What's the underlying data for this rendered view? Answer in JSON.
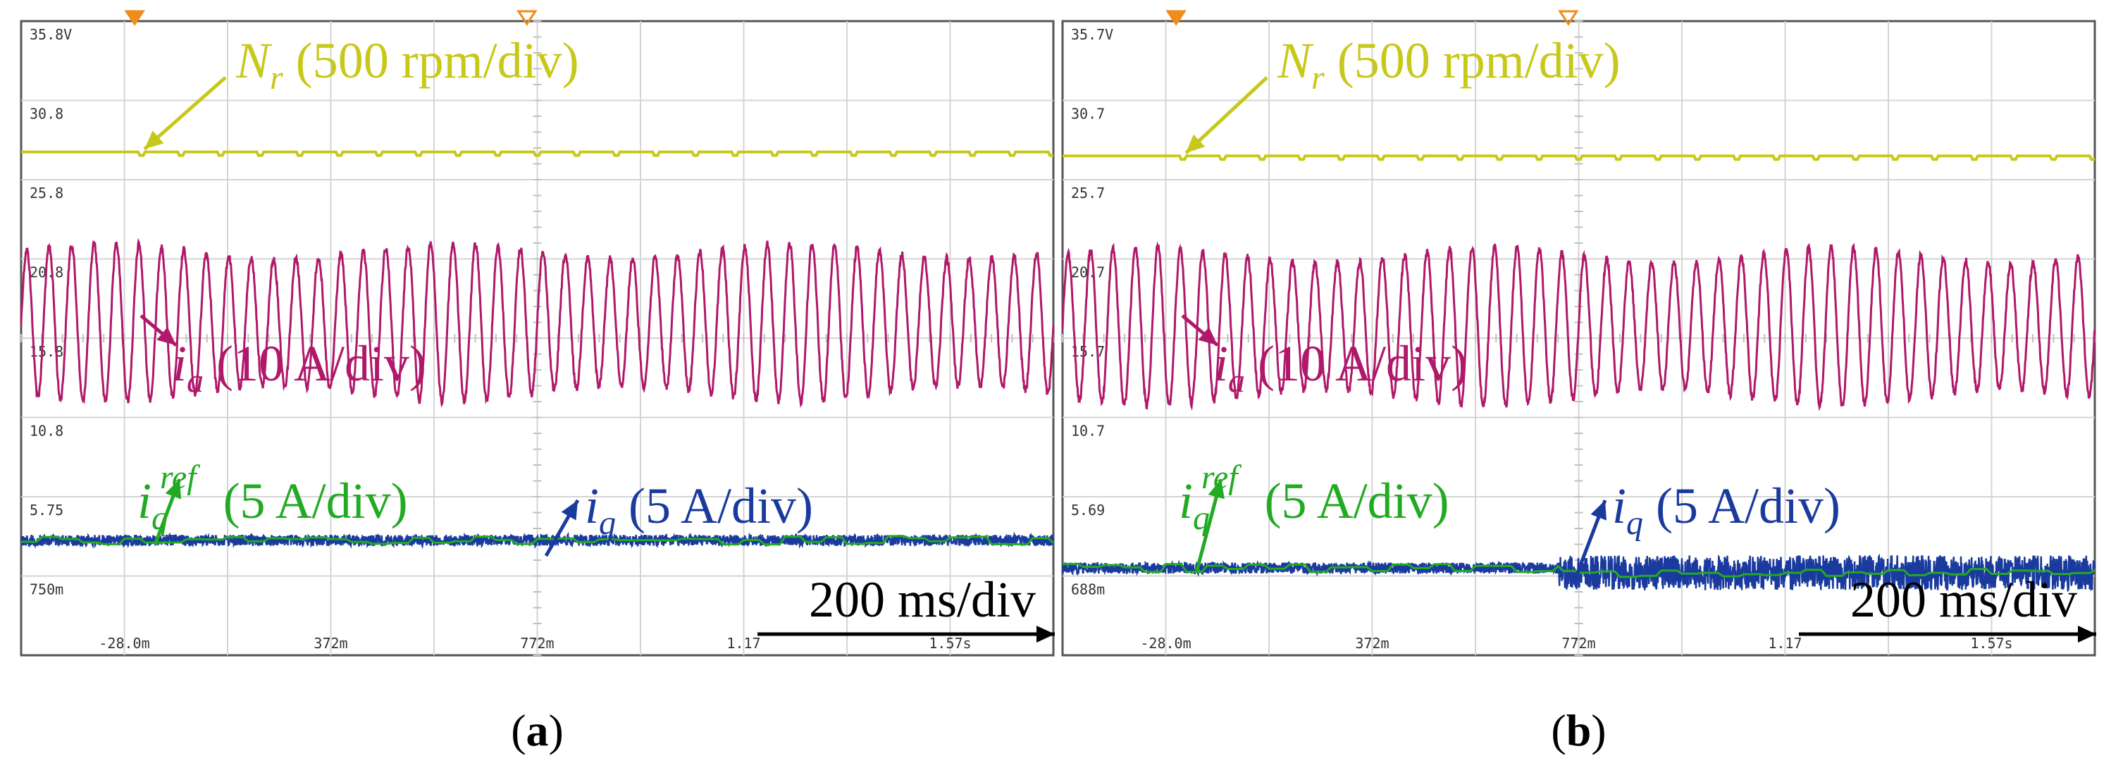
{
  "chart_data": [
    {
      "type": "line",
      "panel": "(a)",
      "caption_letter": "a",
      "y_ticks": [
        "35.8V",
        "30.8",
        "25.8",
        "20.8",
        "15.8",
        "10.8",
        "5.75",
        "750m"
      ],
      "x_ticks": [
        "-28.0m",
        "372m",
        "772m",
        "1.17",
        "1.57s"
      ],
      "x_unit": "s",
      "time_scale_label": "200 ms/div",
      "series": [
        {
          "name": "N_r",
          "label_sym": "N",
          "label_sub": "r",
          "label_scale": "(500 rpm/div)",
          "color": "#c8c81a",
          "center_div": 1.65,
          "description": "constant speed"
        },
        {
          "name": "i_a",
          "label_sym": "i",
          "label_sub": "a",
          "label_scale": "(10 A/div)",
          "color": "#b0186a",
          "center_div": 3.8,
          "amplitude_div": 1.0,
          "cycles": 46
        },
        {
          "name": "i_q",
          "label_sym": "i",
          "label_sub": "q",
          "label_scale": "(5 A/div)",
          "color": "#1a3a9e",
          "center_div": 6.55,
          "noise_div": 0.07
        },
        {
          "name": "i_q_ref",
          "label_sym": "i",
          "label_sub": "q",
          "label_sup": "ref",
          "label_scale": "(5 A/div)",
          "color": "#22aa22",
          "center_div": 6.55
        }
      ]
    },
    {
      "type": "line",
      "panel": "(b)",
      "caption_letter": "b",
      "y_ticks": [
        "35.7V",
        "30.7",
        "25.7",
        "20.7",
        "15.7",
        "10.7",
        "5.69",
        "688m"
      ],
      "x_ticks": [
        "-28.0m",
        "372m",
        "772m",
        "1.17",
        "1.57s"
      ],
      "x_unit": "s",
      "time_scale_label": "200 ms/div",
      "series": [
        {
          "name": "N_r",
          "label_sym": "N",
          "label_sub": "r",
          "label_scale": "(500 rpm/div)",
          "color": "#c8c81a",
          "center_div": 1.7,
          "description": "constant speed"
        },
        {
          "name": "i_a",
          "label_sym": "i",
          "label_sub": "a",
          "label_scale": "(10 A/div)",
          "color": "#b0186a",
          "center_div": 3.85,
          "amplitude_div": 1.0,
          "cycles": 46
        },
        {
          "name": "i_q",
          "label_sym": "i",
          "label_sub": "q",
          "label_scale": "(5 A/div)",
          "color": "#1a3a9e",
          "center_div": 6.9,
          "noise_div": 0.07,
          "noise_after_div": 0.22,
          "step_at_div": 4.8
        },
        {
          "name": "i_q_ref",
          "label_sym": "i",
          "label_sub": "q",
          "label_sup": "ref",
          "label_scale": "(5 A/div)",
          "color": "#22aa22",
          "center_div": 6.9
        }
      ]
    }
  ]
}
